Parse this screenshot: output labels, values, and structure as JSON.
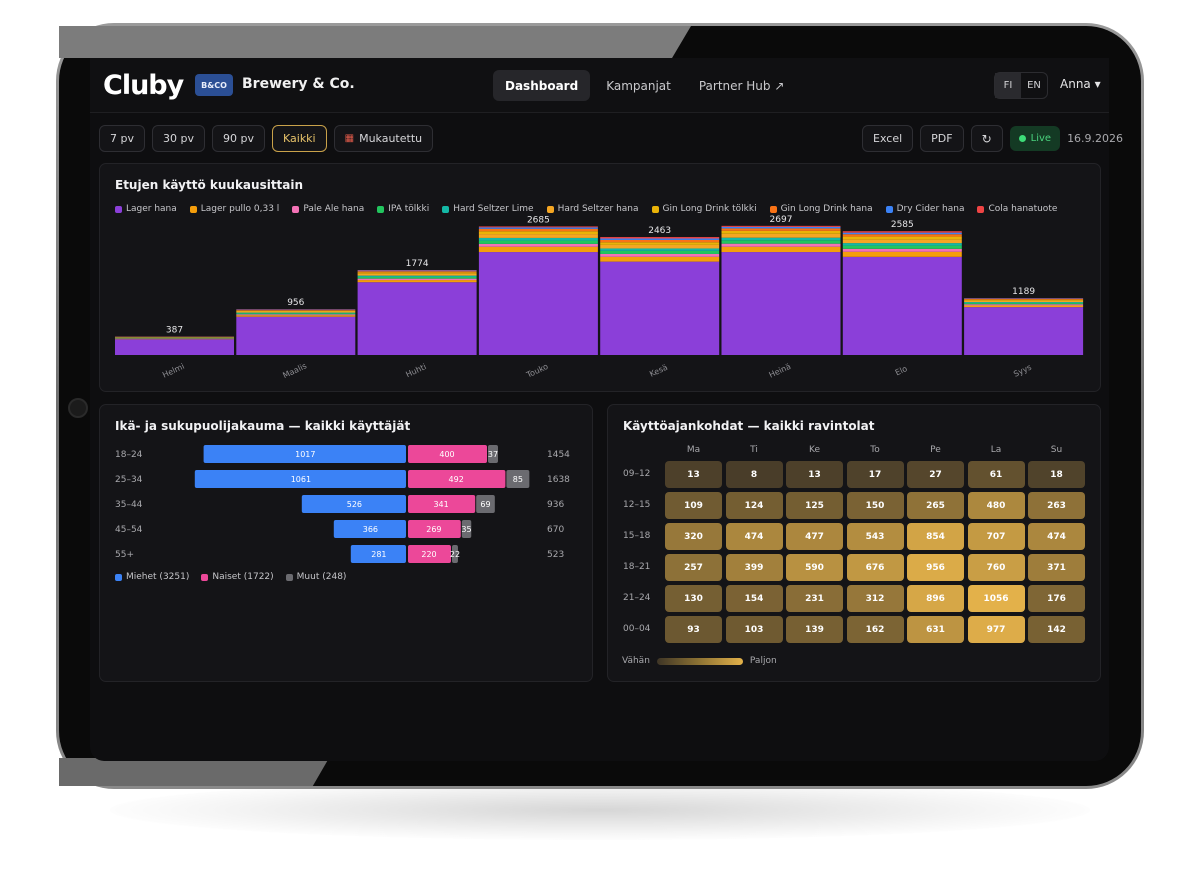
{
  "app": {
    "logo": "Cluby",
    "brand_badge": "B&CO",
    "brand_name": "Brewery & Co."
  },
  "nav": [
    {
      "label": "Dashboard",
      "active": true
    },
    {
      "label": "Kampanjat",
      "active": false
    },
    {
      "label": "Partner Hub ↗",
      "active": false
    }
  ],
  "language": {
    "options": [
      "FI",
      "EN"
    ],
    "active": "FI"
  },
  "user": {
    "name": "Anna ▾"
  },
  "toolbar": {
    "ranges": [
      {
        "label": "7 pv",
        "active": false
      },
      {
        "label": "30 pv",
        "active": false
      },
      {
        "label": "90 pv",
        "active": false
      },
      {
        "label": "Kaikki",
        "active": true
      }
    ],
    "custom_label": "Mukautettu",
    "excel_label": "Excel",
    "pdf_label": "PDF",
    "refresh_icon": "refresh-icon",
    "live_label": "Live",
    "date": "16.9.2026"
  },
  "colors": {
    "accent": "#e8c36a",
    "male": "#3b82f6",
    "female": "#ec4899",
    "other": "#6b6b70",
    "live": "#3ddc78"
  },
  "monthly_chart": {
    "title": "Etujen käyttö kuukausittain",
    "chart_data": {
      "type": "bar",
      "stacked": true,
      "categories": [
        "Helmi",
        "Maalis",
        "Huhti",
        "Touko",
        "Kesä",
        "Heinä",
        "Elo",
        "Syys"
      ],
      "totals": [
        387,
        956,
        1774,
        2685,
        2463,
        2697,
        2585,
        1189
      ],
      "ylim": [
        0,
        3000
      ],
      "series": [
        {
          "name": "Lager hana",
          "color": "#8b3fd9",
          "values": [
            330,
            800,
            1520,
            2150,
            1950,
            2150,
            2050,
            1000
          ]
        },
        {
          "name": "Lager pullo 0,33 l",
          "color": "#f59e0b",
          "values": [
            10,
            30,
            45,
            110,
            100,
            110,
            105,
            35
          ]
        },
        {
          "name": "Pale Ale hana",
          "color": "#f472b6",
          "values": [
            8,
            20,
            30,
            60,
            60,
            65,
            62,
            25
          ]
        },
        {
          "name": "IPA tölkki",
          "color": "#22c55e",
          "values": [
            8,
            20,
            35,
            70,
            65,
            70,
            68,
            25
          ]
        },
        {
          "name": "Hard Seltzer Lime",
          "color": "#14b8a6",
          "values": [
            6,
            16,
            28,
            55,
            50,
            55,
            52,
            20
          ]
        },
        {
          "name": "Hard Seltzer hana",
          "color": "#f5a623",
          "values": [
            8,
            22,
            40,
            80,
            75,
            82,
            78,
            30
          ]
        },
        {
          "name": "Gin Long Drink tölkki",
          "color": "#eab308",
          "values": [
            6,
            16,
            28,
            60,
            55,
            60,
            58,
            20
          ]
        },
        {
          "name": "Gin Long Drink hana",
          "color": "#f97316",
          "values": [
            5,
            14,
            24,
            50,
            48,
            52,
            50,
            18
          ]
        },
        {
          "name": "Dry Cider hana",
          "color": "#3b82f6",
          "values": [
            3,
            10,
            14,
            30,
            30,
            31,
            32,
            9
          ]
        },
        {
          "name": "Cola hanatuote",
          "color": "#ef4444",
          "values": [
            3,
            8,
            10,
            20,
            30,
            22,
            30,
            7
          ]
        }
      ]
    }
  },
  "demographics": {
    "title": "Ikä- ja sukupuolijakauma — kaikki käyttäjät",
    "chart_data": {
      "type": "bar",
      "orientation": "horizontal",
      "categories": [
        "18–24",
        "25–34",
        "35–44",
        "45–54",
        "55+"
      ],
      "series": [
        {
          "name": "Miehet",
          "values": [
            1017,
            1061,
            526,
            366,
            281
          ]
        },
        {
          "name": "Naiset",
          "values": [
            400,
            492,
            341,
            269,
            220
          ]
        },
        {
          "name": "Muut",
          "values": [
            37,
            85,
            69,
            35,
            22
          ]
        }
      ],
      "totals": [
        1454,
        1638,
        936,
        670,
        523
      ]
    },
    "legend": [
      {
        "label": "Miehet (3251)",
        "color": "#3b82f6"
      },
      {
        "label": "Naiset (1722)",
        "color": "#ec4899"
      },
      {
        "label": "Muut (248)",
        "color": "#6b6b70"
      }
    ]
  },
  "heatmap": {
    "title": "Käyttöajankohdat — kaikki ravintolat",
    "chart_data": {
      "type": "heatmap",
      "columns": [
        "Ma",
        "Ti",
        "Ke",
        "To",
        "Pe",
        "La",
        "Su"
      ],
      "rows": [
        "09–12",
        "12–15",
        "15–18",
        "18–21",
        "21–24",
        "00–04"
      ],
      "values": [
        [
          13,
          8,
          13,
          17,
          27,
          61,
          18
        ],
        [
          109,
          124,
          125,
          150,
          265,
          480,
          263
        ],
        [
          320,
          474,
          477,
          543,
          854,
          707,
          474
        ],
        [
          257,
          399,
          590,
          676,
          956,
          760,
          371
        ],
        [
          130,
          154,
          231,
          312,
          896,
          1056,
          176
        ],
        [
          93,
          103,
          139,
          162,
          631,
          977,
          142
        ]
      ],
      "max": 1056
    },
    "scale_low": "Vähän",
    "scale_high": "Paljon"
  }
}
